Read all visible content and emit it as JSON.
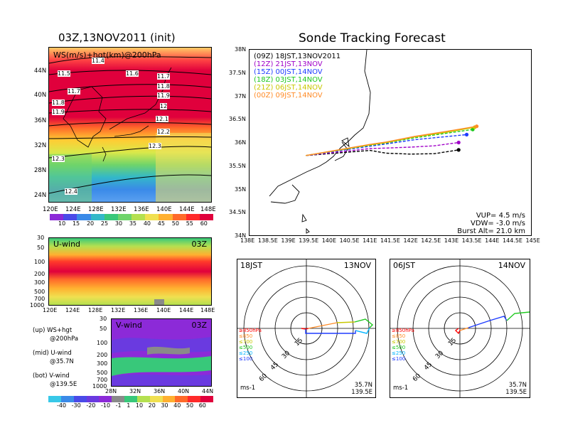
{
  "left": {
    "title": "03Z,13NOV2011 (init)",
    "top_map": {
      "label": "WS(m/s)+hgt(km)@200hPa",
      "lat_ticks": [
        "44N",
        "40N",
        "36N",
        "32N",
        "28N",
        "24N"
      ],
      "lon_ticks": [
        "120E",
        "124E",
        "128E",
        "132E",
        "136E",
        "140E",
        "144E",
        "148E"
      ],
      "contour_labels": [
        "11.4",
        "11.5",
        "11.6",
        "11.7",
        "11.7",
        "11.8",
        "11.8",
        "11.9",
        "11.9",
        "12",
        "12.1",
        "12.2",
        "12.3",
        "12.3",
        "12.4"
      ]
    },
    "ws_colorbar": [
      "10",
      "15",
      "20",
      "25",
      "30",
      "35",
      "40",
      "45",
      "50",
      "55",
      "60"
    ],
    "u_panel": {
      "label": "U-wind",
      "time": "03Z",
      "p_ticks": [
        "30",
        "50",
        "100",
        "200",
        "300",
        "500",
        "700",
        "1000"
      ],
      "lon_ticks": [
        "120E",
        "124E",
        "128E",
        "132E",
        "136E",
        "140E",
        "144E",
        "148E"
      ]
    },
    "v_panel": {
      "label": "V-wind",
      "time": "03Z",
      "p_ticks": [
        "30",
        "50",
        "100",
        "200",
        "300",
        "500",
        "700",
        "1000"
      ],
      "lat_ticks": [
        "28N",
        "32N",
        "36N",
        "40N",
        "44N"
      ]
    },
    "legend": {
      "up": "(up) WS+hgt",
      "up2": "@200hPa",
      "mid": "(mid) U-wind",
      "mid2": "@35.7N",
      "bot": "(bot) V-wind",
      "bot2": "@139.5E"
    },
    "bottom_colorbar": [
      "-40",
      "-30",
      "-20",
      "-10",
      "-1",
      "1",
      "10",
      "20",
      "30",
      "40",
      "50",
      "60"
    ]
  },
  "right": {
    "title": "Sonde Tracking Forecast",
    "track_map": {
      "lat_ticks": [
        "38N",
        "37.5N",
        "37N",
        "36.5N",
        "36N",
        "35.5N",
        "35N",
        "34.5N",
        "34N"
      ],
      "lon_ticks": [
        "138E",
        "138.5E",
        "139E",
        "139.5E",
        "140E",
        "140.5E",
        "141E",
        "141.5E",
        "142E",
        "142.5E",
        "143E",
        "143.5E",
        "144E",
        "144.5E",
        "145E"
      ],
      "legend": [
        {
          "text": "(09Z) 18JST,13NOV2011",
          "color": "#000000"
        },
        {
          "text": "(12Z) 21JST,13NOV",
          "color": "#a000c8"
        },
        {
          "text": "(15Z) 00JST,14NOV",
          "color": "#1e3cff"
        },
        {
          "text": "(18Z) 03JST,14NOV",
          "color": "#1ec81e"
        },
        {
          "text": "(21Z) 06JST,14NOV",
          "color": "#c8c800"
        },
        {
          "text": "(00Z) 09JST,14NOV",
          "color": "#ff8c28"
        }
      ],
      "params": {
        "vup": "VUP= 4.5 m/s",
        "vdw": "VDW= -3.0 m/s",
        "burst": "Burst Alt= 21.0 km"
      }
    },
    "hodo_left": {
      "time": "18JST",
      "date": "13NOV",
      "rings": [
        "15",
        "30",
        "45",
        "60"
      ],
      "levels": [
        "≥850hPa",
        "≤850",
        "≤700",
        "≤500",
        "≤250",
        "≤100"
      ],
      "unit": "ms-1",
      "lat": "35.7N",
      "lon": "139.5E"
    },
    "hodo_right": {
      "time": "06JST",
      "date": "14NOV",
      "rings": [
        "15",
        "30",
        "45",
        "60"
      ],
      "levels": [
        "≥850hPa",
        "≤850",
        "≤700",
        "≤500",
        "≤250",
        "≤100"
      ],
      "unit": "ms-1",
      "lat": "35.7N",
      "lon": "139.5E"
    },
    "level_colors": [
      "#ff0000",
      "#ff8c28",
      "#c8c800",
      "#1ec81e",
      "#00b4ff",
      "#1e3cff"
    ]
  },
  "chart_data": [
    {
      "type": "heatmap",
      "title": "WS(m/s)+hgt(km)@200hPa",
      "x_ticks": [
        "120E",
        "124E",
        "128E",
        "132E",
        "136E",
        "140E",
        "144E",
        "148E"
      ],
      "y_ticks": [
        "24N",
        "28N",
        "32N",
        "36N",
        "40N",
        "44N"
      ],
      "contour_levels_km": [
        11.4,
        11.5,
        11.6,
        11.7,
        11.8,
        11.9,
        12.0,
        12.1,
        12.2,
        12.3,
        12.4
      ],
      "colorbar_ms": [
        10,
        15,
        20,
        25,
        30,
        35,
        40,
        45,
        50,
        55,
        60
      ]
    },
    {
      "type": "heatmap",
      "title": "U-wind",
      "y_ticks_hPa": [
        30,
        50,
        100,
        200,
        300,
        500,
        700,
        1000
      ],
      "x_ticks": [
        "120E",
        "124E",
        "128E",
        "132E",
        "136E",
        "140E",
        "144E",
        "148E"
      ]
    },
    {
      "type": "heatmap",
      "title": "V-wind",
      "y_ticks_hPa": [
        30,
        50,
        100,
        200,
        300,
        500,
        700,
        1000
      ],
      "x_ticks": [
        "28N",
        "32N",
        "36N",
        "40N",
        "44N"
      ]
    },
    {
      "type": "line",
      "title": "Sonde Tracking Forecast",
      "xlim": [
        138.0,
        145.0
      ],
      "ylim": [
        34.0,
        38.0
      ],
      "series": [
        {
          "name": "(09Z) 18JST,13NOV2011",
          "lon": [
            139.4,
            141.0,
            141.4,
            142.0,
            142.6,
            143.2
          ],
          "lat": [
            35.72,
            35.83,
            35.77,
            35.75,
            35.76,
            35.84
          ]
        },
        {
          "name": "(12Z) 21JST,13NOV",
          "lon": [
            139.4,
            141.0,
            141.4,
            142.0,
            142.6,
            143.2
          ],
          "lat": [
            35.72,
            35.87,
            35.88,
            35.9,
            35.93,
            36.0
          ]
        },
        {
          "name": "(15Z) 00JST,14NOV",
          "lon": [
            139.4,
            141.0,
            141.4,
            142.1,
            142.8,
            143.4
          ],
          "lat": [
            35.72,
            35.92,
            35.97,
            36.06,
            36.12,
            36.17
          ]
        },
        {
          "name": "(18Z) 03JST,14NOV",
          "lon": [
            139.4,
            141.0,
            141.4,
            142.1,
            142.9,
            143.55
          ],
          "lat": [
            35.72,
            35.94,
            35.99,
            36.1,
            36.2,
            36.28
          ]
        },
        {
          "name": "(21Z) 06JST,14NOV",
          "lon": [
            139.4,
            141.0,
            141.4,
            142.1,
            142.9,
            143.6
          ],
          "lat": [
            35.72,
            35.95,
            36.0,
            36.12,
            36.22,
            36.33
          ]
        },
        {
          "name": "(00Z) 09JST,14NOV",
          "lon": [
            139.4,
            141.0,
            141.4,
            142.1,
            142.9,
            143.65
          ],
          "lat": [
            35.72,
            35.96,
            36.01,
            36.13,
            36.24,
            36.35
          ]
        }
      ]
    }
  ]
}
